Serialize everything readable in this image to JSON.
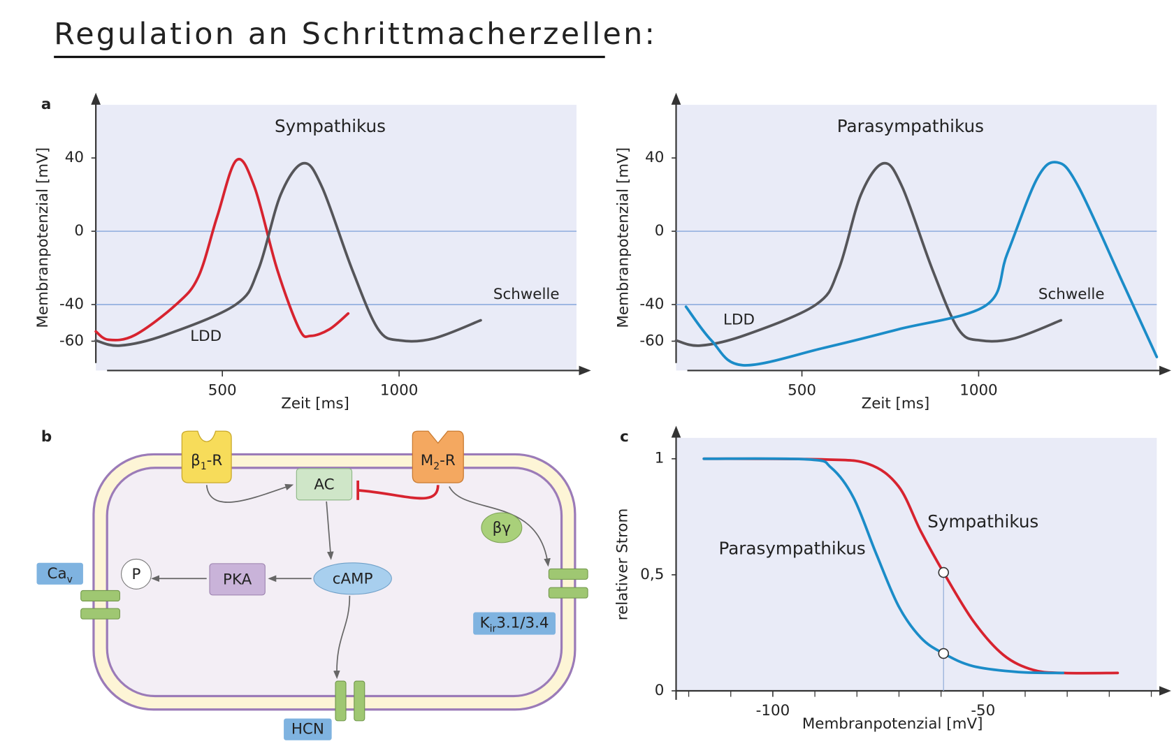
{
  "title": "Regulation an Schrittmacherzellen:",
  "chart_data": [
    {
      "type": "line",
      "panel": "a",
      "title": "Sympathikus",
      "x_label": "Zeit [ms]",
      "y_label": "Membranpotenzial [mV]",
      "xlim": [
        142,
        1502
      ],
      "ylim": [
        -76,
        69
      ],
      "xticks": [
        500,
        1000
      ],
      "yticks": [
        40,
        0,
        -40,
        -60
      ],
      "hlines": [
        0,
        -40
      ],
      "annotations": [
        "LDD",
        "Schwelle"
      ],
      "series": [
        {
          "color": "#d7232f",
          "x": [
            142,
            178,
            252,
            369,
            432,
            485,
            540,
            591,
            655,
            718,
            750,
            803,
            856
          ],
          "values": [
            -54.7,
            -59.2,
            -56.7,
            -40,
            -24.9,
            7.8,
            38.8,
            24.1,
            -20.8,
            -53.5,
            -57.1,
            -53.5,
            -44.9
          ]
        },
        {
          "color": "#555559",
          "x": [
            142,
            210,
            337,
            538,
            602,
            665,
            729,
            782,
            867,
            941,
            1004,
            1100,
            1231
          ],
          "values": [
            -59.6,
            -62.4,
            -56.7,
            -40,
            -20.8,
            20,
            37.1,
            24.1,
            -20.8,
            -53.5,
            -59.6,
            -58.4,
            -48.6
          ]
        }
      ]
    },
    {
      "type": "line",
      "title": "Parasympathikus",
      "x_label": "Zeit [ms]",
      "y_label": "Membranpotenzial [mV]",
      "xlim": [
        144,
        1504
      ],
      "ylim": [
        -76,
        69
      ],
      "xticks": [
        500,
        1000
      ],
      "yticks": [
        40,
        0,
        -40,
        -60
      ],
      "hlines": [
        0,
        -40
      ],
      "annotations": [
        "LDD",
        "Schwelle"
      ],
      "series": [
        {
          "color": "#555559",
          "x": [
            144,
            212,
            339,
            540,
            604,
            667,
            731,
            784,
            869,
            943,
            1006,
            1102,
            1233
          ],
          "values": [
            -59.6,
            -62.4,
            -56.7,
            -40,
            -20.8,
            20,
            37.1,
            24.1,
            -20.8,
            -53.5,
            -59.6,
            -58.4,
            -48.6
          ]
        },
        {
          "color": "#1b8cc8",
          "x": [
            172,
            244,
            333,
            561,
            773,
            1021,
            1081,
            1165,
            1222,
            1282,
            1409,
            1504
          ],
          "values": [
            -41.2,
            -59.6,
            -73.1,
            -63.7,
            -53.5,
            -40.4,
            -12.2,
            28.6,
            37.6,
            24.5,
            -28.6,
            -68.6
          ]
        }
      ]
    },
    {
      "type": "line",
      "panel": "c",
      "x_label": "Membranpotenzial [mV]",
      "y_label": "relativer Strom",
      "xlim": [
        -123,
        -8.7
      ],
      "ylim": [
        0,
        1.09
      ],
      "xticks": [
        -100,
        -50
      ],
      "minor_xticks": [
        -120,
        -110,
        -90,
        -80,
        -70,
        -60,
        -40,
        -30,
        -20,
        -10
      ],
      "yticks": [
        0,
        {
          "value": 0.5,
          "label": "0,5"
        },
        1
      ],
      "vline": -59.4,
      "annotations": [
        "Sympathikus",
        "Parasympathikus"
      ],
      "series": [
        {
          "color": "#d7232f",
          "x": [
            -116.4,
            -87.9,
            -77.2,
            -70.1,
            -64.8,
            -59.4,
            -52.3,
            -45.2,
            -38.1,
            -31.0,
            -18.0
          ],
          "values": [
            1.0,
            0.997,
            0.977,
            0.881,
            0.687,
            0.51,
            0.3,
            0.155,
            0.09,
            0.077,
            0.077
          ]
        },
        {
          "color": "#1b8cc8",
          "x": [
            -116.4,
            -91.5,
            -86.1,
            -80.8,
            -75.4,
            -70.1,
            -64.8,
            -59.4,
            -52.3,
            -41.6,
            -31.0
          ],
          "values": [
            1.0,
            0.997,
            0.961,
            0.832,
            0.59,
            0.365,
            0.229,
            0.161,
            0.106,
            0.081,
            0.077
          ]
        }
      ]
    }
  ],
  "diagram": {
    "panel": "b",
    "beta1_r": [
      "β",
      "1",
      "-R"
    ],
    "m2_r": [
      "M",
      "2",
      "-R"
    ],
    "ac": "AC",
    "beta_gamma": "βγ",
    "camp": "cAMP",
    "pka": "PKA",
    "p": "P",
    "ca_v": [
      "Ca",
      "v"
    ],
    "k_ir": [
      "K",
      "ir",
      "3.1/3.4"
    ],
    "hcn": "HCN"
  }
}
